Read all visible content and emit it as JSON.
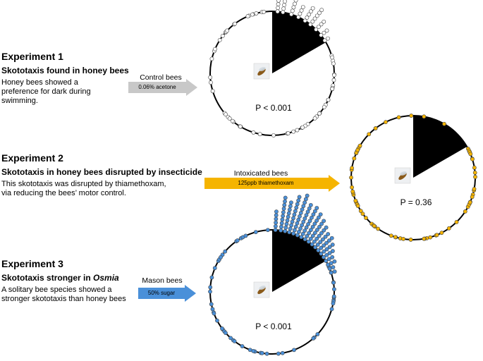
{
  "experiments": [
    {
      "title": "Experiment 1",
      "subtitle": "Skototaxis found in honey bees",
      "description": "Honey bees showed a preference for dark during swimming.",
      "arrow_label": "Control bees",
      "arrow_text": "0.06% acetone",
      "arrow_color": "#c8c8c8",
      "pvalue": "P < 0.001",
      "dot_color": "#ffffff"
    },
    {
      "title": "Experiment 2",
      "subtitle": "Skototaxis in honey bees disrupted by insecticide",
      "description": "This skototaxis was disrupted by thiamethoxam, via reducing the bees’ motor control.",
      "arrow_label": "Intoxicated bees",
      "arrow_text": "125ppb thiamethoxam",
      "arrow_color": "#f5b400",
      "pvalue": "P = 0.36",
      "dot_color": "#f5b400"
    },
    {
      "title": "Experiment 3",
      "subtitle_prefix": "Skototaxis stronger in ",
      "subtitle_italic": "Osmia",
      "description": "A solitary bee species showed a stronger skototaxis than honey bees",
      "arrow_label": "Mason bees",
      "arrow_text": "50% sugar",
      "arrow_color": "#4a90d9",
      "pvalue": "P < 0.001",
      "dot_color": "#4a90d9"
    }
  ]
}
